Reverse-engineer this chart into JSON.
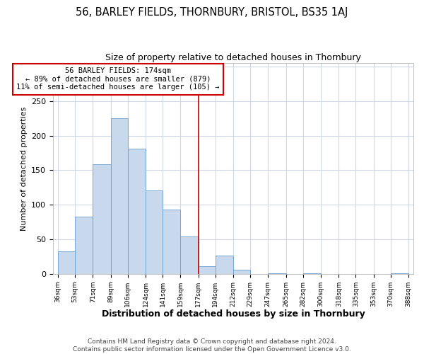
{
  "title": "56, BARLEY FIELDS, THORNBURY, BRISTOL, BS35 1AJ",
  "subtitle": "Size of property relative to detached houses in Thornbury",
  "xlabel": "Distribution of detached houses by size in Thornbury",
  "ylabel": "Number of detached properties",
  "bin_edges": [
    36,
    53,
    71,
    89,
    106,
    124,
    141,
    159,
    177,
    194,
    212,
    229,
    247,
    265,
    282,
    300,
    318,
    335,
    353,
    370,
    388
  ],
  "bin_counts": [
    33,
    83,
    159,
    225,
    181,
    121,
    93,
    54,
    11,
    26,
    6,
    0,
    1,
    0,
    1,
    0,
    0,
    0,
    0,
    1
  ],
  "bar_color": "#c8d9ee",
  "bar_edge_color": "#6a9fd0",
  "vline_x": 177,
  "vline_color": "#cc0000",
  "annotation_text": "56 BARLEY FIELDS: 174sqm\n← 89% of detached houses are smaller (879)\n11% of semi-detached houses are larger (105) →",
  "annotation_box_color": "#ffffff",
  "annotation_box_edge_color": "#cc0000",
  "ylim": [
    0,
    305
  ],
  "tick_labels": [
    "36sqm",
    "53sqm",
    "71sqm",
    "89sqm",
    "106sqm",
    "124sqm",
    "141sqm",
    "159sqm",
    "177sqm",
    "194sqm",
    "212sqm",
    "229sqm",
    "247sqm",
    "265sqm",
    "282sqm",
    "300sqm",
    "318sqm",
    "335sqm",
    "353sqm",
    "370sqm",
    "388sqm"
  ],
  "footer_text": "Contains HM Land Registry data © Crown copyright and database right 2024.\nContains public sector information licensed under the Open Government Licence v3.0.",
  "background_color": "#ffffff",
  "grid_color": "#d0d8e8",
  "title_fontsize": 10.5,
  "subtitle_fontsize": 9,
  "xlabel_fontsize": 9,
  "ylabel_fontsize": 8,
  "tick_fontsize": 6.5,
  "footer_fontsize": 6.5
}
